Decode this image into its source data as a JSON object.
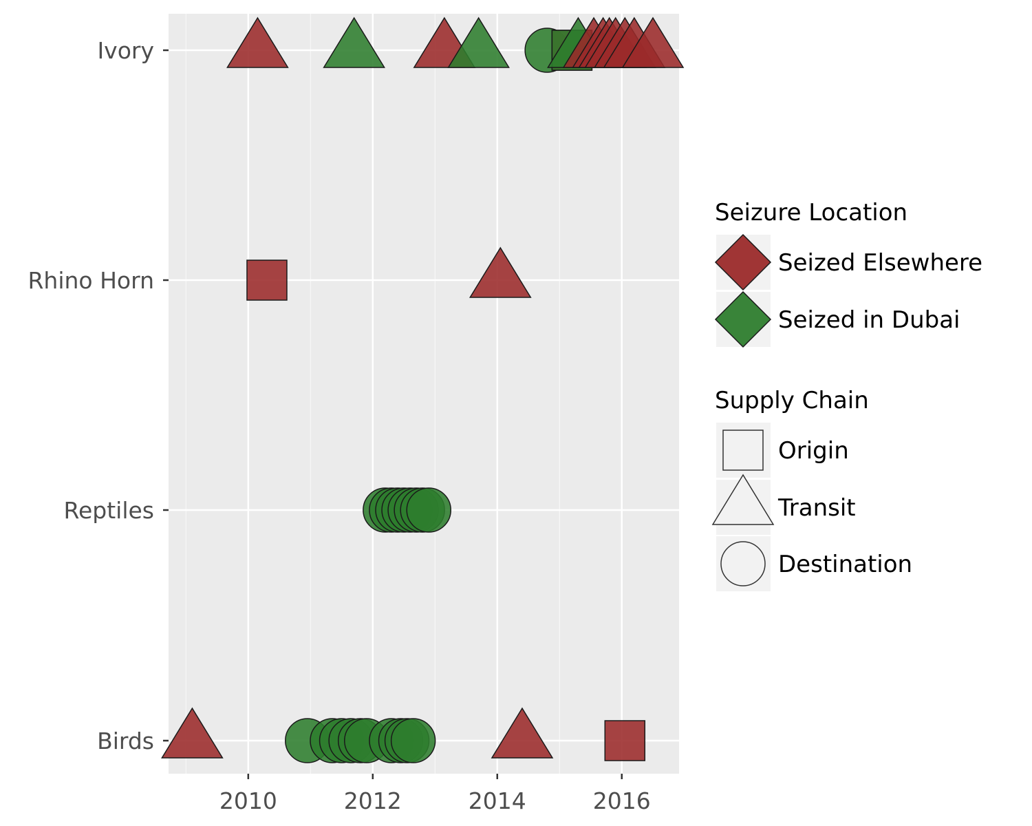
{
  "chart_data": {
    "type": "scatter",
    "title": "",
    "xlabel": "",
    "ylabel": "",
    "xlim": [
      2008.72,
      2016.92
    ],
    "x_ticks": [
      "2010",
      "2012",
      "2014",
      "2016"
    ],
    "categories": [
      "Ivory",
      "Rhino Horn",
      "Reptiles",
      "Birds"
    ],
    "grid": true,
    "legend_placement": "right",
    "colors": {
      "Seized Elsewhere": "#9b2a2a",
      "Seized in Dubai": "#2e7d2e",
      "Seized in Dubai (dense)": "#006400",
      "panel_background": "#ebebeb",
      "grid": "#ffffff"
    },
    "legend": {
      "color_title": "Seizure Location",
      "color_entries": [
        "Seized Elsewhere",
        "Seized in Dubai"
      ],
      "shape_title": "Supply Chain",
      "shape_entries": [
        {
          "label": "Origin",
          "shape": "square"
        },
        {
          "label": "Transit",
          "shape": "triangle"
        },
        {
          "label": "Destination",
          "shape": "circle"
        }
      ]
    },
    "points": [
      {
        "category": "Ivory",
        "x": 2010.15,
        "shape": "triangle",
        "location": "Seized Elsewhere"
      },
      {
        "category": "Ivory",
        "x": 2011.7,
        "shape": "triangle",
        "location": "Seized in Dubai"
      },
      {
        "category": "Ivory",
        "x": 2013.15,
        "shape": "triangle",
        "location": "Seized Elsewhere"
      },
      {
        "category": "Ivory",
        "x": 2013.7,
        "shape": "triangle",
        "location": "Seized in Dubai"
      },
      {
        "category": "Ivory",
        "x": 2014.8,
        "shape": "circle",
        "location": "Seized in Dubai"
      },
      {
        "category": "Ivory",
        "x": 2015.2,
        "shape": "square",
        "location": "Seized Elsewhere"
      },
      {
        "category": "Ivory",
        "x": 2015.2,
        "shape": "square",
        "location": "Seized in Dubai"
      },
      {
        "category": "Ivory",
        "x": 2015.3,
        "shape": "triangle",
        "location": "Seized in Dubai"
      },
      {
        "category": "Ivory",
        "x": 2015.55,
        "shape": "triangle",
        "location": "Seized Elsewhere"
      },
      {
        "category": "Ivory",
        "x": 2015.7,
        "shape": "triangle",
        "location": "Seized Elsewhere"
      },
      {
        "category": "Ivory",
        "x": 2015.8,
        "shape": "triangle",
        "location": "Seized Elsewhere"
      },
      {
        "category": "Ivory",
        "x": 2015.9,
        "shape": "triangle",
        "location": "Seized Elsewhere"
      },
      {
        "category": "Ivory",
        "x": 2016.05,
        "shape": "triangle",
        "location": "Seized Elsewhere"
      },
      {
        "category": "Ivory",
        "x": 2016.2,
        "shape": "triangle",
        "location": "Seized Elsewhere"
      },
      {
        "category": "Ivory",
        "x": 2016.5,
        "shape": "triangle",
        "location": "Seized Elsewhere"
      },
      {
        "category": "Rhino Horn",
        "x": 2010.3,
        "shape": "square",
        "location": "Seized Elsewhere"
      },
      {
        "category": "Rhino Horn",
        "x": 2014.05,
        "shape": "triangle",
        "location": "Seized Elsewhere"
      },
      {
        "category": "Reptiles",
        "x": 2012.2,
        "shape": "circle",
        "location": "Seized in Dubai"
      },
      {
        "category": "Reptiles",
        "x": 2012.3,
        "shape": "circle",
        "location": "Seized in Dubai"
      },
      {
        "category": "Reptiles",
        "x": 2012.4,
        "shape": "circle",
        "location": "Seized in Dubai"
      },
      {
        "category": "Reptiles",
        "x": 2012.5,
        "shape": "circle",
        "location": "Seized in Dubai"
      },
      {
        "category": "Reptiles",
        "x": 2012.6,
        "shape": "circle",
        "location": "Seized in Dubai"
      },
      {
        "category": "Reptiles",
        "x": 2012.7,
        "shape": "circle",
        "location": "Seized in Dubai"
      },
      {
        "category": "Reptiles",
        "x": 2012.8,
        "shape": "circle",
        "location": "Seized in Dubai"
      },
      {
        "category": "Reptiles",
        "x": 2012.9,
        "shape": "circle",
        "location": "Seized in Dubai"
      },
      {
        "category": "Birds",
        "x": 2009.1,
        "shape": "triangle",
        "location": "Seized Elsewhere"
      },
      {
        "category": "Birds",
        "x": 2010.95,
        "shape": "circle",
        "location": "Seized in Dubai"
      },
      {
        "category": "Birds",
        "x": 2011.35,
        "shape": "circle",
        "location": "Seized in Dubai"
      },
      {
        "category": "Birds",
        "x": 2011.5,
        "shape": "circle",
        "location": "Seized in Dubai"
      },
      {
        "category": "Birds",
        "x": 2011.65,
        "shape": "circle",
        "location": "Seized in Dubai"
      },
      {
        "category": "Birds",
        "x": 2011.8,
        "shape": "circle",
        "location": "Seized in Dubai"
      },
      {
        "category": "Birds",
        "x": 2011.9,
        "shape": "circle",
        "location": "Seized in Dubai"
      },
      {
        "category": "Birds",
        "x": 2012.3,
        "shape": "circle",
        "location": "Seized in Dubai"
      },
      {
        "category": "Birds",
        "x": 2012.45,
        "shape": "circle",
        "location": "Seized in Dubai"
      },
      {
        "category": "Birds",
        "x": 2012.55,
        "shape": "circle",
        "location": "Seized in Dubai"
      },
      {
        "category": "Birds",
        "x": 2012.65,
        "shape": "circle",
        "location": "Seized in Dubai"
      },
      {
        "category": "Birds",
        "x": 2014.4,
        "shape": "triangle",
        "location": "Seized Elsewhere"
      },
      {
        "category": "Birds",
        "x": 2016.05,
        "shape": "square",
        "location": "Seized Elsewhere"
      }
    ]
  }
}
